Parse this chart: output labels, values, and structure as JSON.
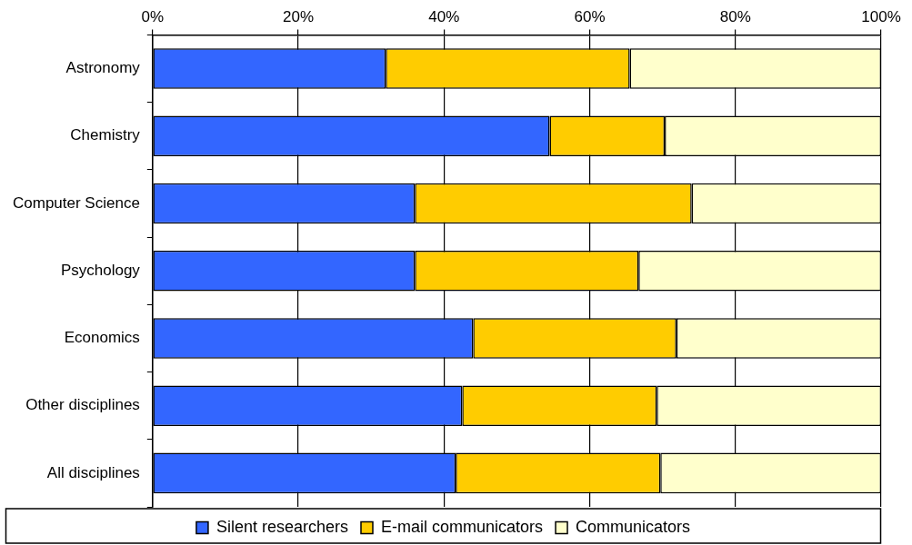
{
  "chart_data": {
    "type": "bar",
    "orientation": "horizontal",
    "stacked": true,
    "categories": [
      "Astronomy",
      "Chemistry",
      "Computer Science",
      "Psychology",
      "Economics",
      "Other disciplines",
      "All disciplines"
    ],
    "series": [
      {
        "name": "Silent researchers",
        "color": "#3366ff",
        "values": [
          32,
          54.5,
          36,
          36,
          44,
          42.5,
          41.6
        ]
      },
      {
        "name": "E-mail communicators",
        "color": "#ffcc00",
        "values": [
          33.5,
          15.8,
          38,
          30.7,
          27.9,
          26.7,
          28.1
        ]
      },
      {
        "name": "Communicators",
        "color": "#ffffcc",
        "values": [
          34.5,
          29.7,
          26,
          33.3,
          28.1,
          30.8,
          30.3
        ]
      }
    ],
    "xlim": [
      0,
      100
    ],
    "xticks": [
      {
        "value": 0,
        "label": "0%"
      },
      {
        "value": 20,
        "label": "20%"
      },
      {
        "value": 40,
        "label": "40%"
      },
      {
        "value": 60,
        "label": "60%"
      },
      {
        "value": 80,
        "label": "80%"
      },
      {
        "value": 100,
        "label": "100%"
      }
    ],
    "grid": "x",
    "legend": "bottom"
  }
}
